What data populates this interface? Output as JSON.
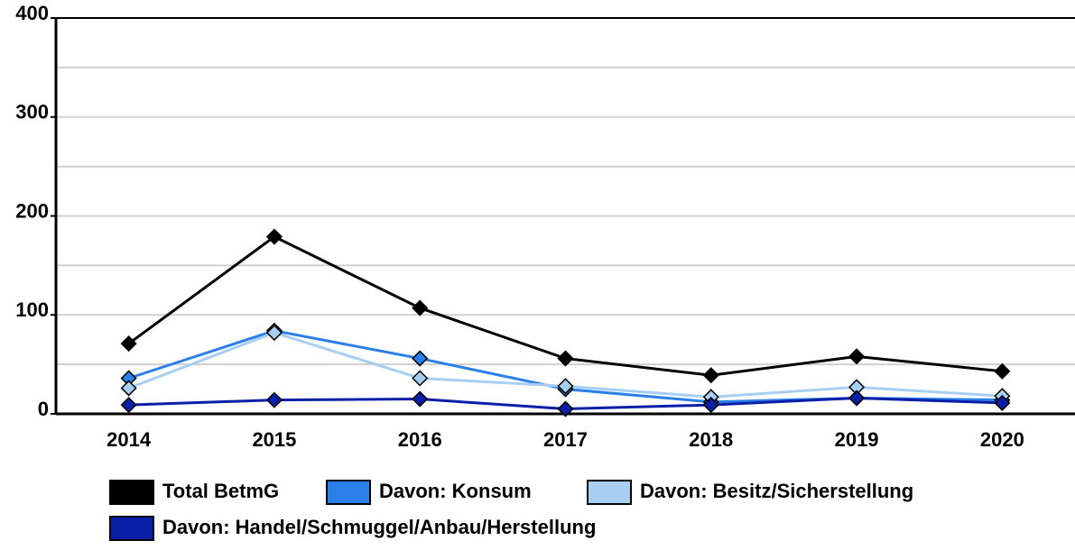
{
  "chart_data": {
    "type": "line",
    "categories": [
      "2014",
      "2015",
      "2016",
      "2017",
      "2018",
      "2019",
      "2020"
    ],
    "series": [
      {
        "name": "Total BetmG",
        "color": "#000000",
        "values": [
          71,
          179,
          107,
          56,
          39,
          58,
          43
        ]
      },
      {
        "name": "Davon: Konsum",
        "color": "#2a7fe8",
        "values": [
          36,
          84,
          56,
          25,
          12,
          16,
          14
        ]
      },
      {
        "name": "Davon: Besitz/Sicherstellung",
        "color": "#a8cff3",
        "values": [
          26,
          82,
          36,
          28,
          17,
          27,
          18
        ]
      },
      {
        "name": "Davon: Handel/Schmuggel/Anbau/Herstellung",
        "color": "#0a1fa8",
        "values": [
          9,
          14,
          15,
          5,
          9,
          16,
          11
        ]
      }
    ],
    "ylim": [
      0,
      400
    ],
    "yticks": [
      0,
      100,
      200,
      300,
      400
    ],
    "minor_grid": [
      50,
      150,
      250,
      350
    ],
    "grid": true,
    "legend": "bottom"
  }
}
